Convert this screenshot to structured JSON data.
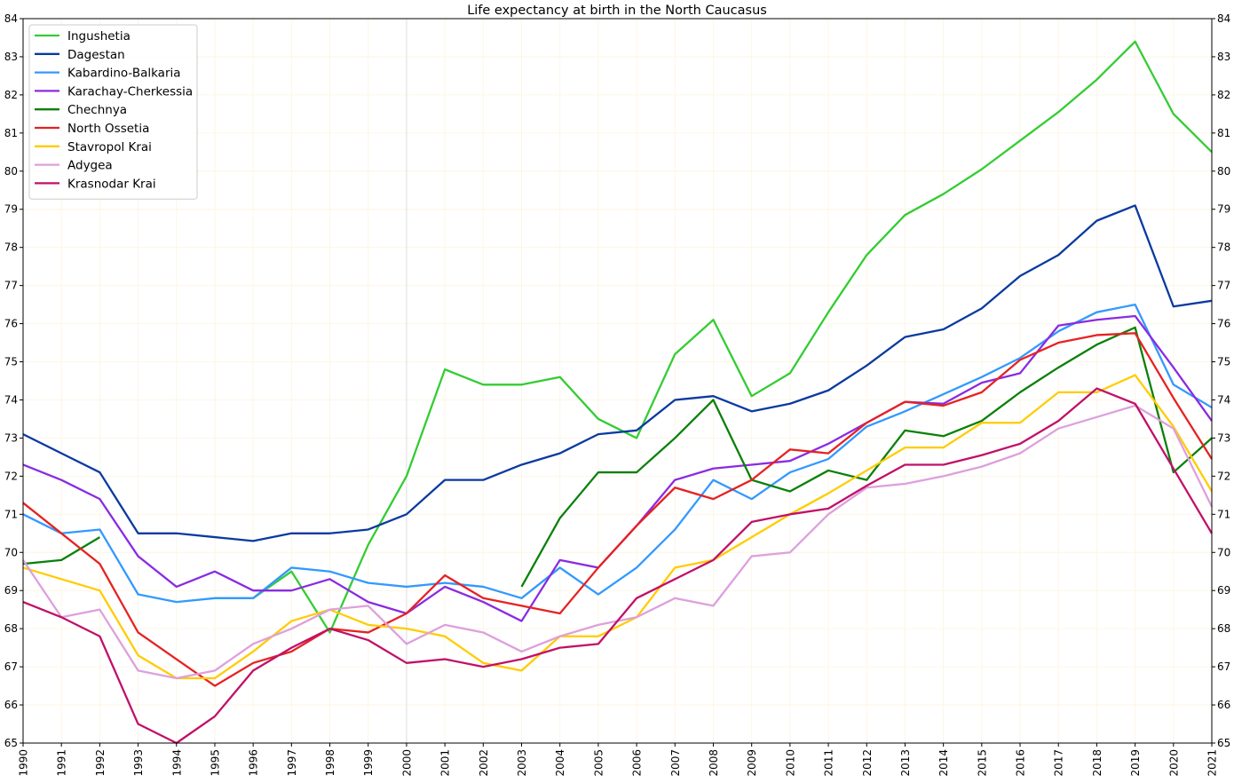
{
  "chart_data": {
    "type": "line",
    "title": "Life expectancy at birth in the North Caucasus",
    "xlabel": "",
    "ylabel": "",
    "xlim": [
      1990,
      2021
    ],
    "ylim": [
      65,
      84
    ],
    "x_ticks": [
      "1990",
      "1991",
      "1992",
      "1993",
      "1994",
      "1995",
      "1996",
      "1997",
      "1998",
      "1999",
      "2000",
      "2001",
      "2002",
      "2003",
      "2004",
      "2005",
      "2006",
      "2007",
      "2008",
      "2009",
      "2010",
      "2011",
      "2012",
      "2013",
      "2014",
      "2015",
      "2016",
      "2017",
      "2018",
      "2019",
      "2020",
      "2021"
    ],
    "y_ticks": [
      65,
      66,
      67,
      68,
      69,
      70,
      71,
      72,
      73,
      74,
      75,
      76,
      77,
      78,
      79,
      80,
      81,
      82,
      83,
      84
    ],
    "grid": true,
    "highlight_x": 2000,
    "legend_position": "top-left",
    "x": [
      1990,
      1991,
      1992,
      1993,
      1994,
      1995,
      1996,
      1997,
      1998,
      1999,
      2000,
      2001,
      2002,
      2003,
      2004,
      2005,
      2006,
      2007,
      2008,
      2009,
      2010,
      2011,
      2012,
      2013,
      2014,
      2015,
      2016,
      2017,
      2018,
      2019,
      2020,
      2021
    ],
    "series": [
      {
        "name": "Ingushetia",
        "color": "#33cc33",
        "values": [
          null,
          null,
          null,
          null,
          null,
          68.8,
          68.8,
          69.5,
          67.9,
          70.2,
          72.0,
          74.8,
          74.4,
          74.4,
          74.6,
          73.5,
          73.0,
          75.2,
          76.1,
          74.1,
          74.7,
          76.3,
          77.8,
          78.85,
          79.4,
          80.05,
          80.8,
          81.55,
          82.4,
          83.4,
          81.5,
          80.5
        ]
      },
      {
        "name": "Dagestan",
        "color": "#0a3aa0",
        "values": [
          73.1,
          72.6,
          72.1,
          70.5,
          70.5,
          70.4,
          70.3,
          70.5,
          70.5,
          70.6,
          71.0,
          71.9,
          71.9,
          72.3,
          72.6,
          73.1,
          73.2,
          74.0,
          74.1,
          73.7,
          73.9,
          74.25,
          74.9,
          75.65,
          75.85,
          76.4,
          77.25,
          77.8,
          78.7,
          79.1,
          76.45,
          76.6
        ]
      },
      {
        "name": "Kabardino-Balkaria",
        "color": "#3399ff",
        "values": [
          71.0,
          70.5,
          70.6,
          68.9,
          68.7,
          68.8,
          68.8,
          69.6,
          69.5,
          69.2,
          69.1,
          69.2,
          69.1,
          68.8,
          69.6,
          68.9,
          69.6,
          70.6,
          71.9,
          71.4,
          72.1,
          72.45,
          73.3,
          73.7,
          74.15,
          74.6,
          75.1,
          75.8,
          76.3,
          76.5,
          74.4,
          73.8
        ]
      },
      {
        "name": "Karachay-Cherkessia",
        "color": "#8a2be2",
        "values": [
          72.3,
          71.9,
          71.4,
          69.9,
          69.1,
          69.5,
          69.0,
          69.0,
          69.3,
          68.7,
          68.4,
          69.1,
          68.7,
          68.2,
          69.8,
          69.6,
          70.7,
          71.9,
          72.2,
          72.3,
          72.4,
          72.85,
          73.4,
          73.95,
          73.9,
          74.45,
          74.7,
          75.95,
          76.1,
          76.2,
          74.85,
          73.45
        ]
      },
      {
        "name": "Chechnya",
        "color": "#0a800a",
        "values": [
          69.7,
          69.8,
          70.4,
          null,
          null,
          null,
          null,
          null,
          null,
          null,
          null,
          null,
          null,
          69.1,
          70.9,
          72.1,
          72.1,
          73.0,
          74.0,
          71.9,
          71.6,
          72.15,
          71.9,
          73.2,
          73.05,
          73.45,
          74.2,
          74.85,
          75.45,
          75.9,
          72.1,
          73.0
        ]
      },
      {
        "name": "North Ossetia",
        "color": "#e62222",
        "values": [
          71.3,
          70.5,
          69.7,
          67.9,
          67.2,
          66.5,
          67.1,
          67.4,
          68.0,
          67.9,
          68.4,
          69.4,
          68.8,
          68.6,
          68.4,
          69.6,
          70.7,
          71.7,
          71.4,
          71.9,
          72.7,
          72.6,
          73.4,
          73.95,
          73.85,
          74.2,
          75.05,
          75.5,
          75.7,
          75.75,
          74.05,
          72.45
        ]
      },
      {
        "name": "Stavropol Krai",
        "color": "#ffcc00",
        "values": [
          69.6,
          69.3,
          69.0,
          67.3,
          66.7,
          66.7,
          67.4,
          68.2,
          68.5,
          68.1,
          68.0,
          67.8,
          67.1,
          66.9,
          67.8,
          67.8,
          68.3,
          69.6,
          69.8,
          70.4,
          71.0,
          71.55,
          72.15,
          72.75,
          72.75,
          73.4,
          73.4,
          74.2,
          74.2,
          74.65,
          73.3,
          71.6
        ]
      },
      {
        "name": "Adygea",
        "color": "#dda0dd",
        "values": [
          69.8,
          68.3,
          68.5,
          66.9,
          66.7,
          66.9,
          67.6,
          68.0,
          68.5,
          68.6,
          67.6,
          68.1,
          67.9,
          67.4,
          67.8,
          68.1,
          68.3,
          68.8,
          68.6,
          69.9,
          70.0,
          71.0,
          71.7,
          71.8,
          72.0,
          72.25,
          72.6,
          73.25,
          73.55,
          73.85,
          73.25,
          71.2
        ]
      },
      {
        "name": "Krasnodar Krai",
        "color": "#c0106a",
        "values": [
          68.7,
          68.3,
          67.8,
          65.5,
          65.0,
          65.7,
          66.9,
          67.5,
          68.0,
          67.7,
          67.1,
          67.2,
          67.0,
          67.2,
          67.5,
          67.6,
          68.8,
          69.3,
          69.8,
          70.8,
          71.0,
          71.15,
          71.75,
          72.3,
          72.3,
          72.55,
          72.85,
          73.45,
          74.3,
          73.9,
          72.2,
          70.5
        ]
      }
    ]
  }
}
